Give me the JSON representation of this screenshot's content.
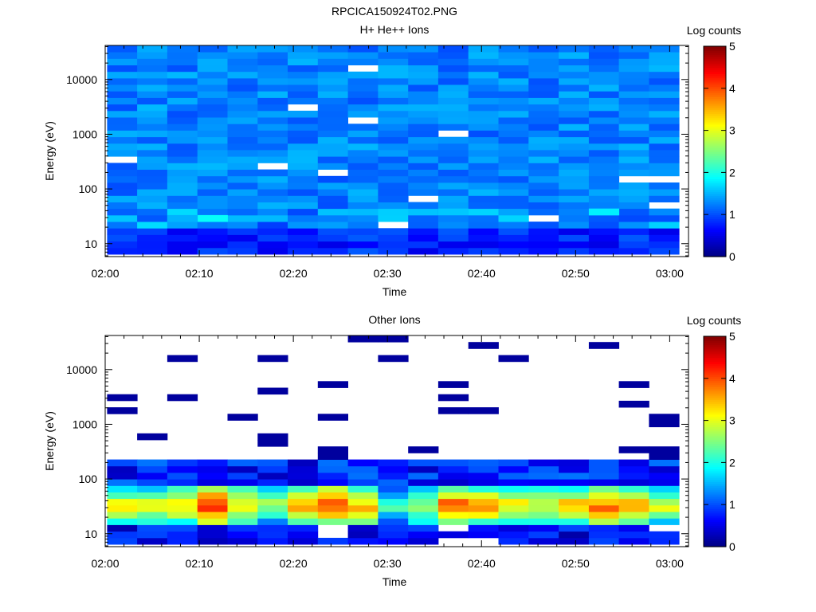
{
  "figure": {
    "title": "RPCICA150924T02.PNG"
  },
  "chart_data": [
    {
      "type": "heatmap",
      "title": "H+ He++ Ions",
      "xlabel": "Time",
      "ylabel": "Energy (eV)",
      "x_range": [
        "02:00",
        "03:02"
      ],
      "x_ticks": [
        "02:00",
        "02:10",
        "02:20",
        "02:30",
        "02:40",
        "02:50",
        "03:00"
      ],
      "y_scale": "log",
      "y_range": [
        5.8,
        42000
      ],
      "y_ticks": [
        10,
        100,
        1000,
        10000
      ],
      "y_tick_labels": [
        "10",
        "100",
        "1000",
        "10000"
      ],
      "colorbar": {
        "label": "Log counts",
        "min": 0,
        "max": 5,
        "ticks": [
          "0",
          "1",
          "2",
          "3",
          "4",
          "5"
        ]
      },
      "time_bins": 19,
      "note_cells": "Bulk of cells around 1.0–1.5 log counts; hotter near 20–40 eV",
      "hot_spots": [
        {
          "time_bin": 3,
          "energy_eV": 32,
          "log_counts": 1.9
        },
        {
          "time_bin": 2,
          "energy_eV": 32,
          "log_counts": 1.5
        },
        {
          "time_bin": 11,
          "energy_eV": 38,
          "log_counts": 1.6
        },
        {
          "time_bin": 16,
          "energy_eV": 38,
          "log_counts": 1.8
        }
      ]
    },
    {
      "type": "heatmap",
      "title": "Other Ions",
      "xlabel": "Time",
      "ylabel": "Energy (eV)",
      "x_range": [
        "02:00",
        "03:02"
      ],
      "x_ticks": [
        "02:00",
        "02:10",
        "02:20",
        "02:30",
        "02:40",
        "02:50",
        "03:00"
      ],
      "y_scale": "log",
      "y_range": [
        5.8,
        42000
      ],
      "y_ticks": [
        10,
        100,
        1000,
        10000
      ],
      "y_tick_labels": [
        "10",
        "100",
        "1000",
        "10000"
      ],
      "colorbar": {
        "label": "Log counts",
        "min": 0,
        "max": 5,
        "ticks": [
          "0",
          "1",
          "2",
          "3",
          "4",
          "5"
        ]
      },
      "time_bins": 19,
      "band_peak_log_counts": [
        3.3,
        3.3,
        3.4,
        4.4,
        3.5,
        2.8,
        3.5,
        4.0,
        3.5,
        2.2,
        3.0,
        4.0,
        3.6,
        3.4,
        3.2,
        3.5,
        4.0,
        3.6,
        3.0
      ]
    }
  ]
}
